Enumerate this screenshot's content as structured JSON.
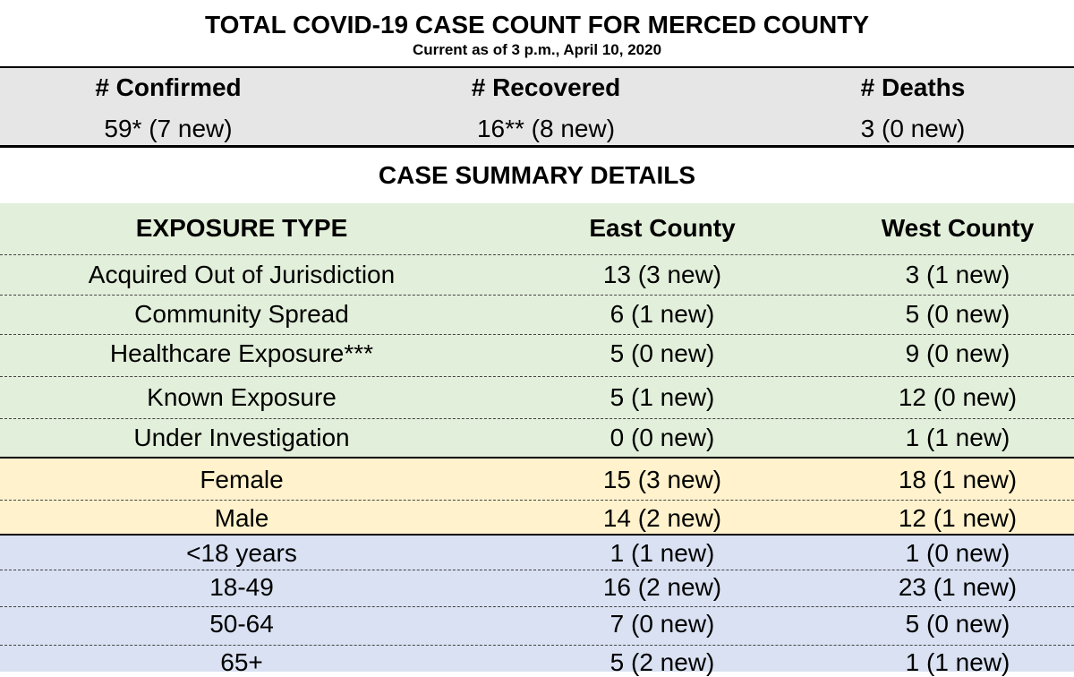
{
  "title": "TOTAL COVID-19 CASE COUNT FOR MERCED COUNTY",
  "subtitle": "Current as of 3 p.m., April 10, 2020",
  "totals": [
    {
      "label": "# Confirmed",
      "value": "59* (7 new)"
    },
    {
      "label": "# Recovered",
      "value": "16** (8 new)"
    },
    {
      "label": "# Deaths",
      "value": "3 (0 new)"
    }
  ],
  "summary_title": "CASE SUMMARY DETAILS",
  "columns": {
    "type": "EXPOSURE TYPE",
    "east": "East County",
    "west": "West County"
  },
  "exposure_rows": [
    {
      "label": "Acquired Out of Jurisdiction",
      "east": "13 (3 new)",
      "west": "3 (1 new)"
    },
    {
      "label": "Community Spread",
      "east": "6 (1 new)",
      "west": "5 (0 new)"
    },
    {
      "label": "Healthcare Exposure***",
      "east": "5 (0 new)",
      "west": "9 (0 new)"
    },
    {
      "label": "Known Exposure",
      "east": "5 (1 new)",
      "west": "12 (0 new)"
    },
    {
      "label": "Under Investigation",
      "east": "0 (0 new)",
      "west": "1 (1 new)"
    }
  ],
  "gender_rows": [
    {
      "label": "Female",
      "east": "15 (3 new)",
      "west": "18 (1 new)"
    },
    {
      "label": "Male",
      "east": "14 (2 new)",
      "west": "12 (1 new)"
    }
  ],
  "age_rows": [
    {
      "label": "<18 years",
      "east": "1 (1 new)",
      "west": "1 (0 new)"
    },
    {
      "label": "18-49",
      "east": "16 (2 new)",
      "west": "23 (1 new)"
    },
    {
      "label": "50-64",
      "east": "7 (0 new)",
      "west": "5 (0 new)"
    },
    {
      "label": "65+",
      "east": "5 (2 new)",
      "west": "1 (1 new)"
    }
  ]
}
